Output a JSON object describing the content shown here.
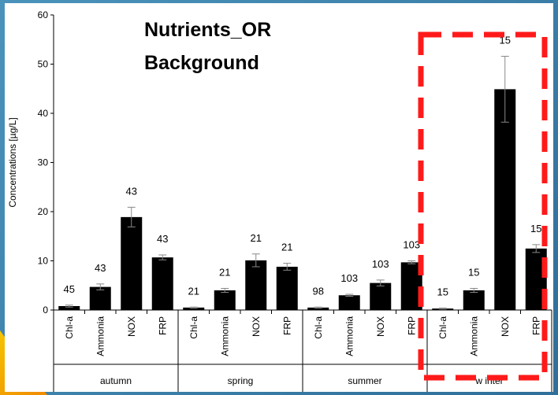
{
  "chart_data": {
    "type": "bar",
    "title_lines": [
      "Nutrients_OR",
      "Background"
    ],
    "ylabel": "Concentrations [µg/L]",
    "ylim": [
      0,
      60
    ],
    "yticks": [
      0,
      10,
      20,
      30,
      40,
      50,
      60
    ],
    "groups": [
      {
        "name": "autumn",
        "categories": [
          "Chl-a",
          "Ammonia",
          "NOX",
          "FRP"
        ],
        "values": [
          0.8,
          4.7,
          18.9,
          10.7
        ],
        "errors": [
          0.2,
          0.6,
          2.0,
          0.5
        ],
        "labels": [
          "45",
          "43",
          "43",
          "43"
        ]
      },
      {
        "name": "spring",
        "categories": [
          "Chl-a",
          "Ammonia",
          "NOX",
          "FRP"
        ],
        "values": [
          0.5,
          4.0,
          10.1,
          8.8
        ],
        "errors": [
          0.1,
          0.4,
          1.3,
          0.7
        ],
        "labels": [
          "21",
          "21",
          "21",
          "21"
        ]
      },
      {
        "name": "summer",
        "categories": [
          "Chl-a",
          "Ammonia",
          "NOX",
          "FRP"
        ],
        "values": [
          0.5,
          3.0,
          5.5,
          9.7
        ],
        "errors": [
          0.1,
          0.2,
          0.6,
          0.3
        ],
        "labels": [
          "98",
          "103",
          "103",
          "103"
        ]
      },
      {
        "name": "w inter",
        "categories": [
          "Chl-a",
          "Ammonia",
          "NOX",
          "FRP"
        ],
        "values": [
          0.3,
          4.0,
          44.9,
          12.5
        ],
        "errors": [
          0.1,
          0.4,
          6.7,
          0.8
        ],
        "labels": [
          "15",
          "15",
          "15",
          "15"
        ]
      }
    ],
    "highlight_group": "w inter",
    "highlight_color": "#ff1a1a",
    "bar_color": "#000000",
    "grid": false
  }
}
